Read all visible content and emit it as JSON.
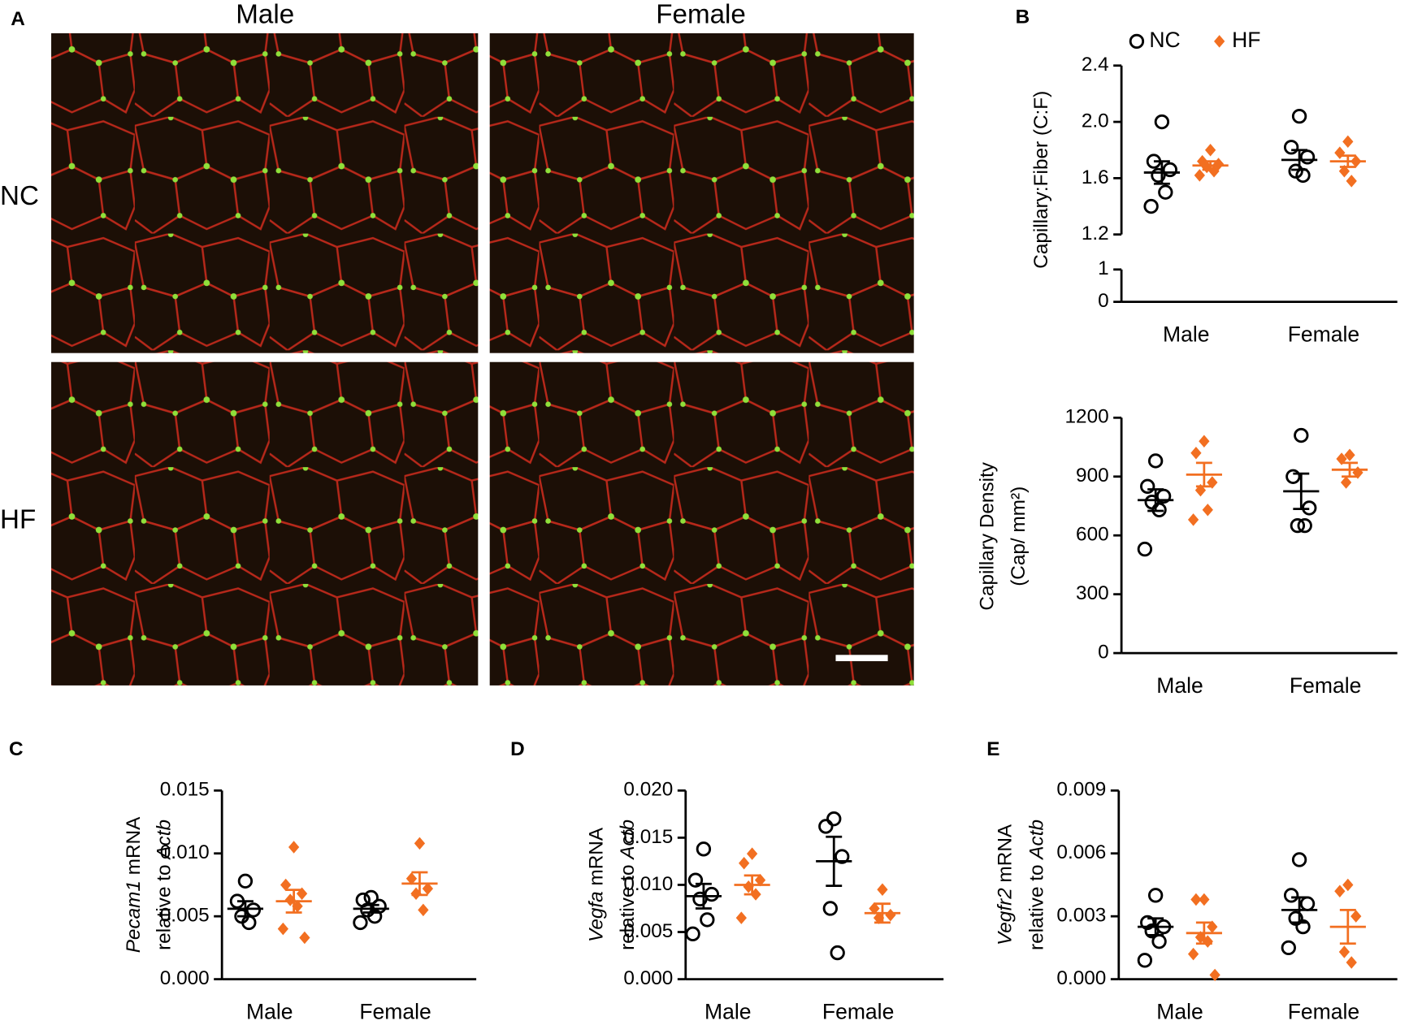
{
  "micrographs": {
    "panel": "A",
    "columns": [
      "Male",
      "Female"
    ],
    "rows": [
      "NC",
      "HF"
    ]
  },
  "chart_data": [
    {
      "type": "dot",
      "panel": "B",
      "ylabel": [
        [
          {
            "text": "Capillary:Fiber (C:F)"
          }
        ]
      ],
      "categories": [
        "Male",
        "Female"
      ],
      "ylim": [
        0,
        2.4
      ],
      "ybreak": [
        1,
        1.2
      ],
      "yticks": [
        0,
        1,
        1.2,
        1.6,
        {
          "value": 2,
          "label": "2.0"
        },
        2.4
      ],
      "legend": "top",
      "series": [
        {
          "name": "NC",
          "color": "#000000",
          "marker": "circle",
          "values": [
            [
              2.0,
              1.72,
              1.66,
              1.62,
              1.5,
              1.4
            ],
            [
              2.04,
              1.82,
              1.75,
              1.65,
              1.62
            ]
          ],
          "means": [
            1.64,
            1.73
          ],
          "sems": [
            0.08,
            0.07
          ]
        },
        {
          "name": "HF",
          "color": "#f26f21",
          "marker": "diamond",
          "values": [
            [
              1.8,
              1.72,
              1.7,
              1.68,
              1.65,
              1.62
            ],
            [
              1.86,
              1.78,
              1.72,
              1.65,
              1.58
            ]
          ],
          "means": [
            1.69,
            1.72
          ],
          "sems": [
            0.03,
            0.04
          ]
        }
      ]
    },
    {
      "type": "dot",
      "ylabel": [
        [
          {
            "text": "Capillary Density"
          }
        ],
        [
          {
            "text": "(Cap/ mm²)"
          }
        ]
      ],
      "categories": [
        "Male",
        "Female"
      ],
      "ylim": [
        0,
        1200
      ],
      "yticks": [
        0,
        300,
        600,
        900,
        1200
      ],
      "series": [
        {
          "color": "#000000",
          "marker": "circle",
          "values": [
            [
              980,
              850,
              800,
              770,
              730,
              530
            ],
            [
              1110,
              900,
              740,
              650,
              650
            ]
          ],
          "means": [
            780,
            825
          ],
          "sems": [
            55,
            90
          ]
        },
        {
          "color": "#f26f21",
          "marker": "diamond",
          "values": [
            [
              1080,
              1020,
              870,
              830,
              730,
              680
            ],
            [
              1010,
              990,
              920,
              870
            ]
          ],
          "means": [
            910,
            935
          ],
          "sems": [
            60,
            35
          ]
        }
      ]
    },
    {
      "type": "dot",
      "panel": "C",
      "ylabel": [
        [
          {
            "text": "Pecam1",
            "italic": true
          },
          {
            "text": " mRNA"
          }
        ],
        [
          {
            "text": "relative to "
          },
          {
            "text": "Actb",
            "italic": true
          }
        ]
      ],
      "categories": [
        "Male",
        "Female"
      ],
      "ylim": [
        0,
        0.015
      ],
      "yticks": [
        {
          "value": 0,
          "label": "0.000"
        },
        0.005,
        {
          "value": 0.01,
          "label": "0.010"
        },
        0.015
      ],
      "series": [
        {
          "color": "#000000",
          "marker": "circle",
          "values": [
            [
              0.0078,
              0.0062,
              0.0055,
              0.005,
              0.0045
            ],
            [
              0.0065,
              0.0063,
              0.0058,
              0.0055,
              0.005,
              0.0045
            ]
          ],
          "means": [
            0.0056,
            0.0056
          ],
          "sems": [
            0.0006,
            0.0003
          ]
        },
        {
          "color": "#f26f21",
          "marker": "diamond",
          "values": [
            [
              0.0105,
              0.0075,
              0.0068,
              0.0063,
              0.0058,
              0.004,
              0.0033
            ],
            [
              0.0108,
              0.008,
              0.0072,
              0.0068,
              0.0055
            ]
          ],
          "means": [
            0.0062,
            0.0076
          ],
          "sems": [
            0.0009,
            0.0009
          ]
        }
      ]
    },
    {
      "type": "dot",
      "panel": "D",
      "ylabel": [
        [
          {
            "text": "Vegfa",
            "italic": true
          },
          {
            "text": " mRNA"
          }
        ],
        [
          {
            "text": "relative to "
          },
          {
            "text": "Actb",
            "italic": true
          }
        ]
      ],
      "categories": [
        "Male",
        "Female"
      ],
      "ylim": [
        0,
        0.02
      ],
      "yticks": [
        {
          "value": 0,
          "label": "0.000"
        },
        0.005,
        {
          "value": 0.01,
          "label": "0.010"
        },
        0.015,
        {
          "value": 0.02,
          "label": "0.020"
        }
      ],
      "series": [
        {
          "color": "#000000",
          "marker": "circle",
          "values": [
            [
              0.0138,
              0.0105,
              0.009,
              0.0085,
              0.0063,
              0.0048
            ],
            [
              0.017,
              0.0162,
              0.013,
              0.0075,
              0.0028
            ]
          ],
          "means": [
            0.0088,
            0.0125
          ],
          "sems": [
            0.0013,
            0.0026
          ]
        },
        {
          "color": "#f26f21",
          "marker": "diamond",
          "values": [
            [
              0.0133,
              0.0123,
              0.0105,
              0.0098,
              0.009,
              0.0065
            ],
            [
              0.0095,
              0.0075,
              0.0068,
              0.0065
            ]
          ],
          "means": [
            0.01,
            0.007
          ],
          "sems": [
            0.001,
            0.001
          ]
        }
      ]
    },
    {
      "type": "dot",
      "panel": "E",
      "ylabel": [
        [
          {
            "text": "Vegfr2",
            "italic": true
          },
          {
            "text": " mRNA"
          }
        ],
        [
          {
            "text": "relative to "
          },
          {
            "text": "Actb",
            "italic": true
          }
        ]
      ],
      "categories": [
        "Male",
        "Female"
      ],
      "ylim": [
        0,
        0.009
      ],
      "yticks": [
        {
          "value": 0,
          "label": "0.000"
        },
        0.003,
        0.006,
        0.009
      ],
      "series": [
        {
          "color": "#000000",
          "marker": "circle",
          "values": [
            [
              0.004,
              0.0027,
              0.0025,
              0.0023,
              0.0018,
              0.0009
            ],
            [
              0.0057,
              0.004,
              0.0036,
              0.0029,
              0.0025,
              0.0015
            ]
          ],
          "means": [
            0.0025,
            0.0033
          ],
          "sems": [
            0.0004,
            0.0006
          ]
        },
        {
          "color": "#f26f21",
          "marker": "diamond",
          "values": [
            [
              0.0038,
              0.0038,
              0.0025,
              0.002,
              0.0018,
              0.0012,
              0.0002
            ],
            [
              0.0045,
              0.0042,
              0.003,
              0.0013,
              0.0008
            ]
          ],
          "means": [
            0.0022,
            0.0025
          ],
          "sems": [
            0.0005,
            0.0008
          ]
        }
      ]
    }
  ]
}
